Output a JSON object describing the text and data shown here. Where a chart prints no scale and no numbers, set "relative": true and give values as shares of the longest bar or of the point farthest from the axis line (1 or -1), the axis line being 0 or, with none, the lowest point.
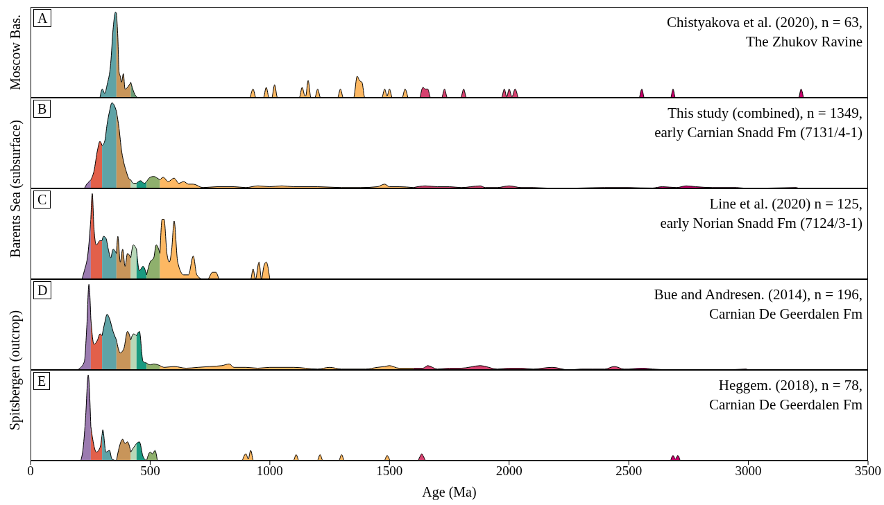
{
  "chart_data": [
    {
      "type": "area",
      "relative": true,
      "ylabel": "Moscow Bas.",
      "annotations": [
        "A",
        "Chistyakova et al. (2020), n = 63,",
        "The Zhukov Ravine"
      ],
      "xlim": [
        0,
        3500
      ],
      "xticks": [
        0,
        500,
        1000,
        1500,
        2000,
        2500,
        3000,
        3500
      ],
      "tick_labels": false,
      "series": [
        {
          "color": "#5fa3a6",
          "x": [
            290,
            300,
            310,
            320,
            335,
            345,
            355,
            359
          ],
          "values": [
            0,
            0.1,
            0.05,
            0.15,
            0.4,
            0.8,
            1.0,
            0.99
          ]
        },
        {
          "color": "#c8955a",
          "x": [
            359,
            365,
            370,
            375,
            380,
            388,
            395,
            405,
            419
          ],
          "values": [
            0.99,
            0.7,
            0.3,
            0.25,
            0.18,
            0.28,
            0.1,
            0.12,
            0.18
          ]
        },
        {
          "color": "#6b9c78",
          "x": [
            419,
            425,
            440,
            450
          ],
          "values": [
            0.18,
            0.12,
            0.02,
            0
          ]
        },
        {
          "color": "#fdb863",
          "x": [
            918,
            930,
            942,
            973,
            985,
            997,
            1008,
            1020,
            1032,
            1123,
            1135,
            1147,
            1150,
            1160,
            1172,
            1188,
            1200,
            1212,
            1283,
            1295,
            1307,
            1350,
            1365,
            1375,
            1385,
            1397,
            1468,
            1480,
            1490,
            1500,
            1512,
            1553,
            1565,
            1577
          ],
          "values": [
            0,
            0.1,
            0,
            0,
            0.12,
            0,
            0,
            0.15,
            0,
            0,
            0.12,
            0.02,
            0.02,
            0.2,
            0,
            0,
            0.1,
            0,
            0,
            0.1,
            0,
            0,
            0.25,
            0.2,
            0.18,
            0,
            0,
            0.1,
            0.02,
            0.1,
            0,
            0,
            0.1,
            0
          ]
        },
        {
          "color": "#d6416f",
          "x": [
            1628,
            1640,
            1650,
            1660,
            1672,
            1718,
            1730,
            1742,
            1798,
            1810,
            1822,
            1968,
            1980,
            1990,
            2000,
            2012,
            2025,
            2037
          ],
          "values": [
            0,
            0.12,
            0.1,
            0.1,
            0,
            0,
            0.1,
            0,
            0,
            0.1,
            0,
            0,
            0.1,
            0.01,
            0.1,
            0.01,
            0.1,
            0
          ]
        },
        {
          "color": "#c8006a",
          "x": [
            2545,
            2555,
            2565,
            2675,
            2685,
            2695,
            3210,
            3220,
            3230
          ],
          "values": [
            0,
            0.1,
            0,
            0,
            0.1,
            0,
            0,
            0.1,
            0
          ]
        }
      ]
    },
    {
      "type": "area",
      "relative": true,
      "ylabel": "Barents Sea (subsurface)",
      "annotations": [
        "B",
        "This study (combined), n = 1349,",
        "early Carnian Snadd Fm (7131/4-1)"
      ],
      "xlim": [
        0,
        3500
      ],
      "xticks": [
        0,
        500,
        1000,
        1500,
        2000,
        2500,
        3000,
        3500
      ],
      "tick_labels": false,
      "series": [
        {
          "color": "#9b7bb0",
          "x": [
            225,
            235,
            245,
            252
          ],
          "values": [
            0,
            0.05,
            0.08,
            0.1
          ]
        },
        {
          "color": "#e2604a",
          "x": [
            252,
            265,
            280,
            290,
            299
          ],
          "values": [
            0.1,
            0.2,
            0.45,
            0.55,
            0.5
          ]
        },
        {
          "color": "#5fa3a6",
          "x": [
            299,
            310,
            320,
            330,
            340,
            350,
            359
          ],
          "values": [
            0.5,
            0.55,
            0.75,
            0.9,
            1.0,
            0.97,
            0.9
          ]
        },
        {
          "color": "#c8955a",
          "x": [
            359,
            370,
            380,
            390,
            400,
            410,
            419
          ],
          "values": [
            0.9,
            0.7,
            0.45,
            0.3,
            0.2,
            0.12,
            0.1
          ]
        },
        {
          "color": "#b8d8b8",
          "x": [
            419,
            430,
            443
          ],
          "values": [
            0.1,
            0.06,
            0.06
          ]
        },
        {
          "color": "#1a9a80",
          "x": [
            443,
            460,
            475,
            485
          ],
          "values": [
            0.06,
            0.09,
            0.06,
            0.08
          ]
        },
        {
          "color": "#8fb06d",
          "x": [
            485,
            500,
            515,
            530,
            541
          ],
          "values": [
            0.08,
            0.13,
            0.14,
            0.12,
            0.1
          ]
        },
        {
          "color": "#fdb863",
          "x": [
            541,
            555,
            575,
            600,
            620,
            640,
            660,
            680,
            720,
            780,
            850,
            900,
            950,
            1000,
            1050,
            1100,
            1200,
            1300,
            1380,
            1450,
            1480,
            1500,
            1540,
            1600
          ],
          "values": [
            0.1,
            0.13,
            0.08,
            0.12,
            0.06,
            0.08,
            0.05,
            0.05,
            0.01,
            0.02,
            0.02,
            0.01,
            0.03,
            0.02,
            0.03,
            0.02,
            0.02,
            0.01,
            0.01,
            0.02,
            0.05,
            0.02,
            0.02,
            0.01
          ]
        },
        {
          "color": "#d6416f",
          "x": [
            1600,
            1650,
            1700,
            1750,
            1800,
            1880,
            1900,
            1950,
            2000,
            2050,
            2100,
            2200,
            2300,
            2400,
            2500
          ],
          "values": [
            0.01,
            0.03,
            0.02,
            0.02,
            0.01,
            0.03,
            0.01,
            0.01,
            0.03,
            0.01,
            0.01,
            0,
            0.005,
            0.01,
            0.01
          ]
        },
        {
          "color": "#c8006a",
          "x": [
            2500,
            2600,
            2640,
            2700,
            2740,
            2780,
            2850,
            2950,
            3000,
            3200,
            3210
          ],
          "values": [
            0.01,
            0.005,
            0.02,
            0.01,
            0.03,
            0.02,
            0.01,
            0.01,
            0,
            0.01,
            0
          ]
        }
      ]
    },
    {
      "type": "area",
      "relative": true,
      "annotations": [
        "C",
        "Line et al. (2020) n = 125,",
        "early Norian Snadd Fm (7124/3-1)"
      ],
      "xlim": [
        0,
        3500
      ],
      "xticks": [
        0,
        500,
        1000,
        1500,
        2000,
        2500,
        3000,
        3500
      ],
      "tick_labels": false,
      "series": [
        {
          "color": "#9b7bb0",
          "x": [
            215,
            225,
            240,
            252
          ],
          "values": [
            0,
            0.1,
            0.3,
            0.7
          ]
        },
        {
          "color": "#e2604a",
          "x": [
            252,
            258,
            265,
            275,
            290,
            299
          ],
          "values": [
            0.7,
            1.0,
            0.6,
            0.4,
            0.45,
            0.45
          ]
        },
        {
          "color": "#5fa3a6",
          "x": [
            299,
            305,
            315,
            325,
            335,
            345,
            359
          ],
          "values": [
            0.45,
            0.5,
            0.48,
            0.35,
            0.25,
            0.35,
            0.3
          ]
        },
        {
          "color": "#c8955a",
          "x": [
            359,
            365,
            375,
            385,
            395,
            405,
            419
          ],
          "values": [
            0.3,
            0.5,
            0.2,
            0.35,
            0.15,
            0.3,
            0.25
          ]
        },
        {
          "color": "#b8d8b8",
          "x": [
            419,
            430,
            443
          ],
          "values": [
            0.25,
            0.4,
            0.35
          ]
        },
        {
          "color": "#1a9a80",
          "x": [
            443,
            455,
            470,
            485
          ],
          "values": [
            0.35,
            0.1,
            0.15,
            0.05
          ]
        },
        {
          "color": "#8fb06d",
          "x": [
            485,
            500,
            515,
            525,
            541
          ],
          "values": [
            0.05,
            0.2,
            0.25,
            0.4,
            0.3
          ]
        },
        {
          "color": "#fdb863",
          "x": [
            541,
            550,
            558,
            570,
            580,
            590,
            600,
            615,
            640,
            660,
            680,
            695,
            720,
            740,
            760,
            775,
            790,
            920,
            930,
            940,
            955,
            965,
            975,
            985,
            1000
          ],
          "values": [
            0.3,
            0.7,
            0.7,
            0.3,
            0.2,
            0.35,
            0.68,
            0.2,
            0.05,
            0.05,
            0.27,
            0.05,
            0,
            0,
            0.08,
            0.08,
            0,
            0,
            0.12,
            0,
            0.2,
            0,
            0.15,
            0.2,
            0
          ]
        }
      ]
    },
    {
      "type": "area",
      "relative": true,
      "ylabel": "Spitsbergen (outcrop)",
      "annotations": [
        "D",
        "Bue and Andresen. (2014), n = 196,",
        "Carnian De Geerdalen Fm"
      ],
      "xlim": [
        0,
        3500
      ],
      "xticks": [
        0,
        500,
        1000,
        1500,
        2000,
        2500,
        3000,
        3500
      ],
      "tick_labels": false,
      "series": [
        {
          "color": "#9b7bb0",
          "x": [
            195,
            210,
            225,
            235,
            244,
            252
          ],
          "values": [
            0,
            0.03,
            0.1,
            0.5,
            1.0,
            0.6
          ]
        },
        {
          "color": "#e2604a",
          "x": [
            252,
            265,
            280,
            290,
            299
          ],
          "values": [
            0.6,
            0.3,
            0.35,
            0.42,
            0.4
          ]
        },
        {
          "color": "#5fa3a6",
          "x": [
            299,
            310,
            320,
            330,
            345,
            359
          ],
          "values": [
            0.4,
            0.55,
            0.65,
            0.6,
            0.45,
            0.35
          ]
        },
        {
          "color": "#c8955a",
          "x": [
            359,
            375,
            390,
            405,
            419
          ],
          "values": [
            0.35,
            0.2,
            0.25,
            0.45,
            0.35
          ]
        },
        {
          "color": "#b8d8b8",
          "x": [
            419,
            430,
            443
          ],
          "values": [
            0.35,
            0.42,
            0.4
          ]
        },
        {
          "color": "#1a9a80",
          "x": [
            443,
            455,
            470,
            485
          ],
          "values": [
            0.4,
            0.45,
            0.1,
            0.08
          ]
        },
        {
          "color": "#8fb06d",
          "x": [
            485,
            500,
            515,
            541
          ],
          "values": [
            0.08,
            0.06,
            0.07,
            0.05
          ]
        },
        {
          "color": "#fdb863",
          "x": [
            541,
            560,
            600,
            650,
            700,
            750,
            800,
            830,
            850,
            900,
            950,
            1000,
            1100,
            1200,
            1250,
            1300,
            1400,
            1450,
            1480,
            1500,
            1540,
            1600
          ],
          "values": [
            0.05,
            0.03,
            0.04,
            0.02,
            0.03,
            0.04,
            0.05,
            0.07,
            0.03,
            0.03,
            0.02,
            0.03,
            0.03,
            0.01,
            0.03,
            0.01,
            0.01,
            0.03,
            0.04,
            0.05,
            0.02,
            0.02
          ]
        },
        {
          "color": "#d6416f",
          "x": [
            1600,
            1640,
            1660,
            1700,
            1750,
            1800,
            1880,
            1950,
            2000,
            2050,
            2100,
            2180,
            2250,
            2300,
            2350,
            2400,
            2440,
            2480,
            2500
          ],
          "values": [
            0.02,
            0.02,
            0.05,
            0.01,
            0.02,
            0.02,
            0.05,
            0.01,
            0.02,
            0.02,
            0.01,
            0.03,
            0,
            0.01,
            0.01,
            0.01,
            0.04,
            0.01,
            0.01
          ]
        },
        {
          "color": "#c8006a",
          "x": [
            2500,
            2560,
            2600,
            2700,
            2800,
            2900,
            2990,
            3000
          ],
          "values": [
            0.01,
            0.02,
            0.01,
            0,
            0,
            0,
            0.01,
            0
          ]
        }
      ]
    },
    {
      "type": "area",
      "relative": true,
      "xlabel": "Age (Ma)",
      "annotations": [
        "E",
        "Heggem. (2018), n = 78,",
        "Carnian De Geerdalen Fm"
      ],
      "xlim": [
        0,
        3500
      ],
      "xticks": [
        0,
        500,
        1000,
        1500,
        2000,
        2500,
        3000,
        3500
      ],
      "tick_labels": "x",
      "series": [
        {
          "color": "#9b7bb0",
          "x": [
            210,
            220,
            230,
            241,
            252
          ],
          "values": [
            0,
            0.15,
            0.5,
            1.0,
            0.4
          ]
        },
        {
          "color": "#e2604a",
          "x": [
            252,
            260,
            275,
            290,
            299
          ],
          "values": [
            0.4,
            0.25,
            0.1,
            0.15,
            0.3
          ]
        },
        {
          "color": "#5fa3a6",
          "x": [
            299,
            302,
            315,
            330,
            340,
            359
          ],
          "values": [
            0.3,
            0.36,
            0.1,
            0.12,
            0.02,
            0
          ]
        },
        {
          "color": "#c8955a",
          "x": [
            359,
            370,
            385,
            395,
            405,
            419
          ],
          "values": [
            0,
            0.15,
            0.25,
            0.2,
            0.22,
            0.1
          ]
        },
        {
          "color": "#b8d8b8",
          "x": [
            419,
            430,
            443
          ],
          "values": [
            0.1,
            0.15,
            0.2
          ]
        },
        {
          "color": "#1a9a80",
          "x": [
            443,
            455,
            470,
            485
          ],
          "values": [
            0.2,
            0.22,
            0.05,
            0
          ]
        },
        {
          "color": "#8fb06d",
          "x": [
            485,
            500,
            510,
            520,
            530
          ],
          "values": [
            0,
            0.1,
            0.08,
            0.12,
            0
          ]
        },
        {
          "color": "#fdb863",
          "x": [
            885,
            900,
            910,
            920,
            932,
            1098,
            1110,
            1122,
            1198,
            1210,
            1222,
            1288,
            1300,
            1312,
            1478,
            1490,
            1502
          ],
          "values": [
            0,
            0.08,
            0.02,
            0.12,
            0,
            0,
            0.07,
            0,
            0,
            0.07,
            0,
            0,
            0.07,
            0,
            0,
            0.06,
            0
          ]
        },
        {
          "color": "#d6416f",
          "x": [
            1620,
            1628,
            1635,
            1642,
            1650
          ],
          "values": [
            0,
            0.05,
            0.08,
            0.05,
            0
          ]
        },
        {
          "color": "#c8006a",
          "x": [
            2675,
            2685,
            2695,
            2705,
            2715
          ],
          "values": [
            0,
            0.06,
            0.02,
            0.06,
            0
          ]
        }
      ]
    }
  ]
}
